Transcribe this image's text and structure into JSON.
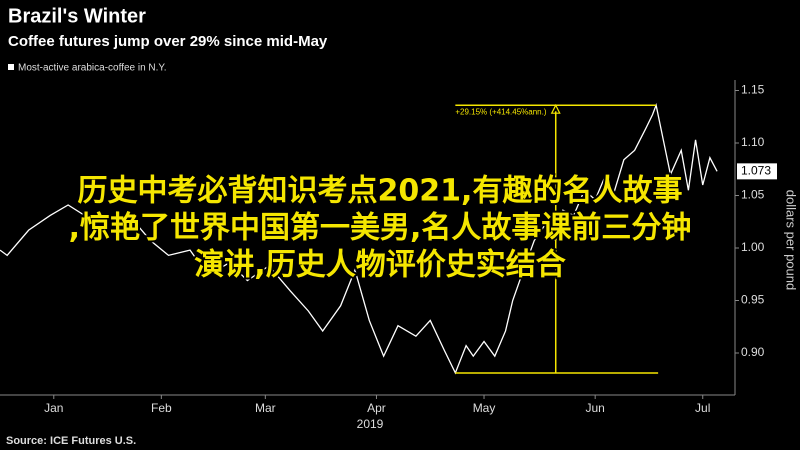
{
  "chart_data": {
    "type": "line",
    "title": "Brazil's Winter",
    "subtitle": "Coffee futures jump over 29% since mid-May",
    "legend": "Most-active arabica-coffee in N.Y.",
    "y_axis_label": "dollars per pound",
    "x_axis_label": "2019",
    "source": "Source: ICE Futures U.S.",
    "annotation": "+29.15% (+414.45%ann.)",
    "annotation_color": "#f5e600",
    "x": [
      0,
      2,
      8,
      14,
      19,
      25,
      30,
      36,
      42,
      47,
      53,
      58,
      64,
      69,
      75,
      81,
      86,
      90,
      95,
      99,
      103,
      107,
      111,
      116,
      120,
      124,
      127,
      130,
      132,
      135,
      138,
      141,
      143,
      146,
      149,
      152,
      155,
      157,
      160,
      163,
      166,
      169,
      171,
      174,
      177,
      180,
      182,
      183,
      185,
      187,
      190,
      192,
      194,
      196,
      198,
      200
    ],
    "series": [
      {
        "name": "Most-active arabica-coffee in N.Y.",
        "color": "#ffffff",
        "values": [
          0.998,
          0.993,
          1.017,
          1.031,
          1.041,
          1.028,
          1.012,
          1.031,
          1.007,
          0.993,
          0.998,
          0.974,
          0.986,
          0.969,
          0.983,
          0.959,
          0.94,
          0.921,
          0.945,
          0.979,
          0.931,
          0.897,
          0.926,
          0.916,
          0.931,
          0.902,
          0.881,
          0.907,
          0.897,
          0.911,
          0.897,
          0.921,
          0.95,
          0.979,
          1.007,
          1.022,
          1.007,
          1.036,
          1.031,
          1.055,
          1.046,
          1.07,
          1.05,
          1.084,
          1.093,
          1.113,
          1.127,
          1.136,
          1.103,
          1.07,
          1.093,
          1.055,
          1.103,
          1.06,
          1.086,
          1.073
        ]
      }
    ],
    "xlim": [
      0,
      205
    ],
    "xticks": [
      {
        "value": 15,
        "label": "Jan"
      },
      {
        "value": 45,
        "label": "Feb"
      },
      {
        "value": 74,
        "label": "Mar"
      },
      {
        "value": 105,
        "label": "Apr"
      },
      {
        "value": 135,
        "label": "May"
      },
      {
        "value": 166,
        "label": "Jun"
      },
      {
        "value": 196,
        "label": "Jul"
      }
    ],
    "ylim": [
      0.86,
      1.16
    ],
    "yticks": [
      {
        "value": 0.9,
        "label": "0.90"
      },
      {
        "value": 0.95,
        "label": "0.95"
      },
      {
        "value": 1.0,
        "label": "1.00"
      },
      {
        "value": 1.05,
        "label": "1.05"
      },
      {
        "value": 1.1,
        "label": "1.10"
      },
      {
        "value": 1.15,
        "label": "1.15"
      }
    ],
    "overlay_text": [
      "历史中考必背知识考点2021,有趣的名人故事",
      ",惊艳了世界中国第一美男,名人故事课前三分钟",
      "演讲,历史人物评价史实结合"
    ]
  }
}
